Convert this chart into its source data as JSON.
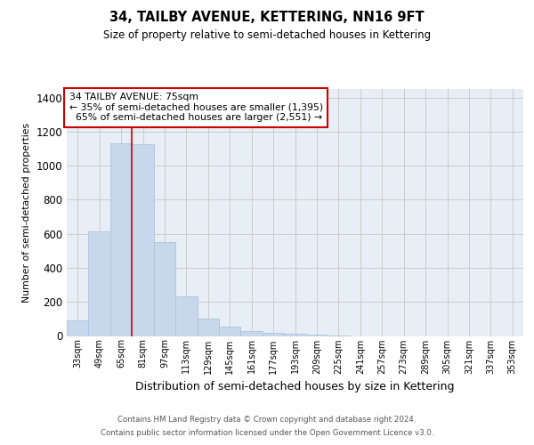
{
  "title": "34, TAILBY AVENUE, KETTERING, NN16 9FT",
  "subtitle": "Size of property relative to semi-detached houses in Kettering",
  "xlabel": "Distribution of semi-detached houses by size in Kettering",
  "ylabel": "Number of semi-detached properties",
  "bar_categories": [
    "33sqm",
    "49sqm",
    "65sqm",
    "81sqm",
    "97sqm",
    "113sqm",
    "129sqm",
    "145sqm",
    "161sqm",
    "177sqm",
    "193sqm",
    "209sqm",
    "225sqm",
    "241sqm",
    "257sqm",
    "273sqm",
    "289sqm",
    "305sqm",
    "321sqm",
    "337sqm",
    "353sqm"
  ],
  "bar_values": [
    90,
    615,
    1130,
    1125,
    550,
    230,
    100,
    55,
    30,
    20,
    15,
    10,
    5,
    0,
    0,
    0,
    0,
    0,
    0,
    0,
    0
  ],
  "bar_color": "#c8d8ec",
  "bar_edge_color": "#adc4de",
  "property_label": "34 TAILBY AVENUE: 75sqm",
  "pct_smaller": 35,
  "count_smaller": 1395,
  "pct_larger": 65,
  "count_larger": 2551,
  "ylim": [
    0,
    1450
  ],
  "yticks": [
    0,
    200,
    400,
    600,
    800,
    1000,
    1200,
    1400
  ],
  "red_line_color": "#cc0000",
  "red_line_x": 2.5,
  "grid_color": "#cccccc",
  "background_color": "#e8eef5",
  "footer_line1": "Contains HM Land Registry data © Crown copyright and database right 2024.",
  "footer_line2": "Contains public sector information licensed under the Open Government Licence v3.0."
}
